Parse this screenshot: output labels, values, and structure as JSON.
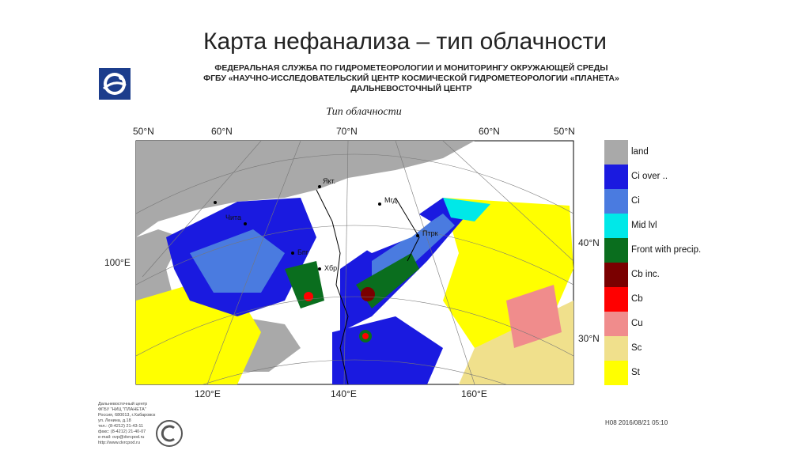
{
  "slide_title": "Карта нефанализа – тип облачности",
  "header": {
    "line1": "ФЕДЕРАЛЬНАЯ СЛУЖБА ПО ГИДРОМЕТЕОРОЛОГИИ И МОНИТОРИНГУ ОКРУЖАЮЩЕЙ СРЕДЫ",
    "line2": "ФГБУ «НАУЧНО-ИССЛЕДОВАТЕЛЬСКИЙ ЦЕНТР КОСМИЧЕСКОЙ ГИДРОМЕТЕОРОЛОГИИ «ПЛАНЕТА»",
    "line3": "ДАЛЬНЕВОСТОЧНЫЙ ЦЕНТР"
  },
  "map_subtitle": "Тип облачности",
  "grid_labels": {
    "top": [
      "50°N",
      "60°N",
      "70°N",
      "60°N",
      "50°N"
    ],
    "left": [
      "100°E"
    ],
    "right": [
      "40°N",
      "30°N"
    ],
    "bottom": [
      "120°E",
      "140°E",
      "160°E"
    ]
  },
  "places": [
    "Якт.",
    "Мгд.",
    "Чита",
    "Птрк",
    "Бпг",
    "Хбр"
  ],
  "legend": [
    {
      "label": "land",
      "color": "#a9a9a9"
    },
    {
      "label": "Ci over ..",
      "color": "#1a1ae0"
    },
    {
      "label": "Ci",
      "color": "#4a7be0"
    },
    {
      "label": "Mid lvl",
      "color": "#00e8e8"
    },
    {
      "label": "Front with precip.",
      "color": "#0a6e1e"
    },
    {
      "label": "Cb inc.",
      "color": "#7a0000"
    },
    {
      "label": "Cb",
      "color": "#ff0000"
    },
    {
      "label": "Cu",
      "color": "#f08c8c"
    },
    {
      "label": "Sc",
      "color": "#f0e08c"
    },
    {
      "label": "St",
      "color": "#ffff00"
    }
  ],
  "footer": {
    "lines": [
      "Дальневосточный центр",
      "ФГБУ \"НИЦ \"ПЛАНЕТА\"",
      "Россия, 680013, г.Хабаровск",
      "ул. Ленина, д.18",
      "тел.: (8-4212) 21-43-11",
      "факс: (8-4212) 21-40-07",
      "e-mail: ovp@dvrcpod.ru",
      "http://www.dvrcpod.ru"
    ],
    "stamp": "H08 2016/08/21 05:10"
  }
}
